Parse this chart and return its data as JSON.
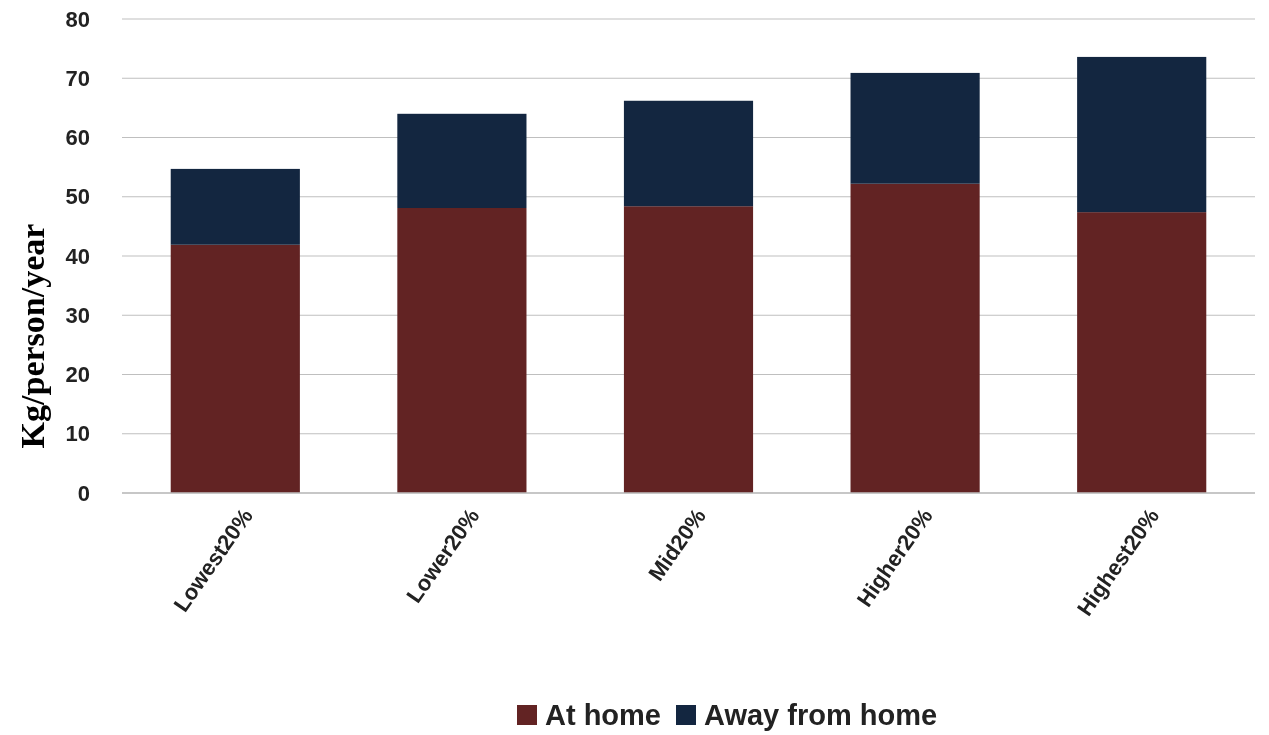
{
  "chart_data": {
    "type": "bar",
    "stacked": true,
    "ylabel": "Kg/person/year",
    "categories": [
      "Lowest20%",
      "Lower20%",
      "Mid20%",
      "Higher20%",
      "Highest20%"
    ],
    "series": [
      {
        "name": "At home",
        "color": "#622323",
        "values": [
          41.9,
          48.1,
          48.4,
          52.2,
          47.4
        ]
      },
      {
        "name": "Away from home",
        "color": "#132640",
        "values": [
          12.8,
          15.9,
          17.8,
          18.7,
          26.2
        ]
      }
    ],
    "ylim": [
      0,
      80
    ],
    "yticks": [
      0,
      10,
      20,
      30,
      40,
      50,
      60,
      70,
      80
    ],
    "grid": "y",
    "legend": "bottom"
  }
}
